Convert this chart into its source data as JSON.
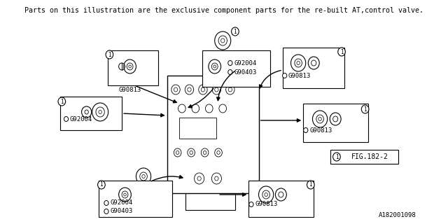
{
  "title_text": "Parts on this illustration are the exclusive component parts for the re-built AT,control valve.",
  "watermark": "A182001098",
  "figure_label": "FIG.182-2",
  "bg_color": "#ffffff",
  "line_color": "#000000",
  "font_color": "#000000",
  "title_fontsize": 7.2,
  "label_fontsize": 6.5,
  "callout_label": "1"
}
